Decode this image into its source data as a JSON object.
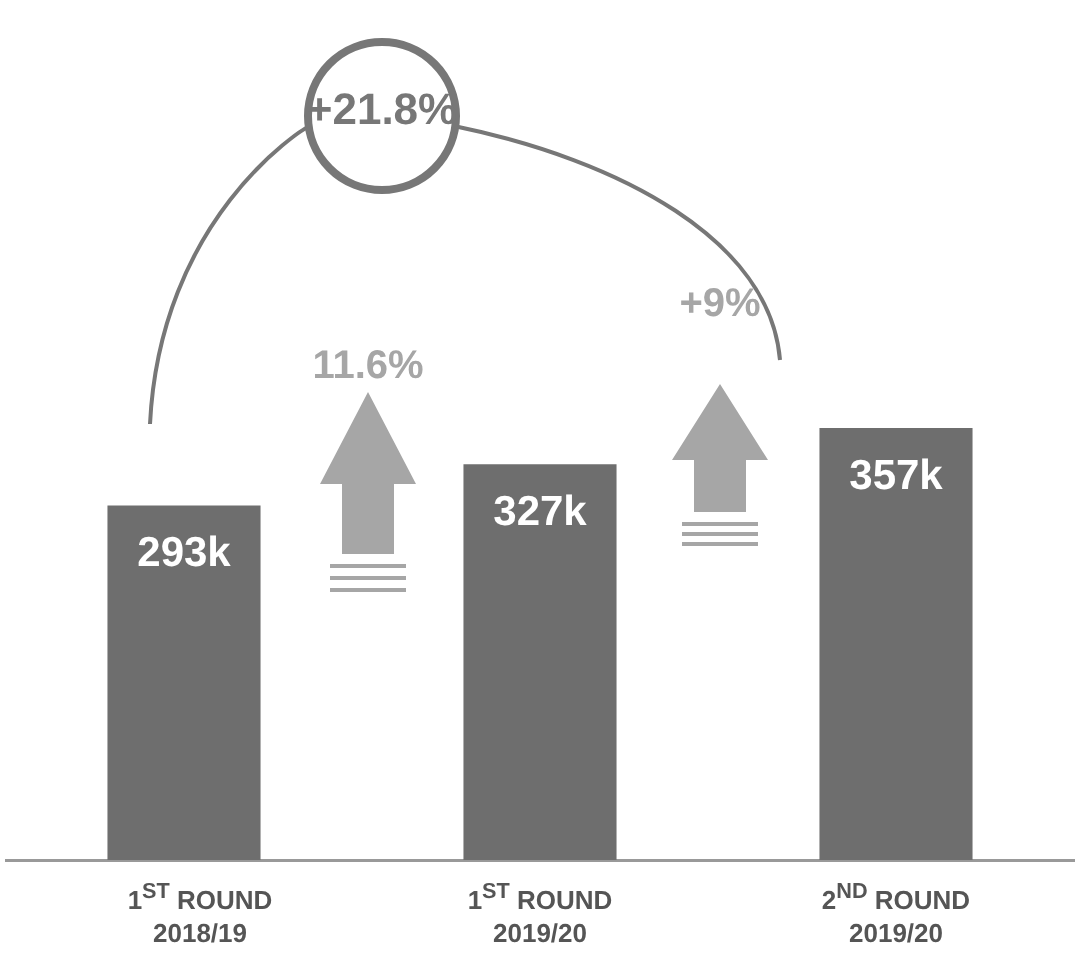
{
  "chart_data": {
    "type": "bar",
    "categories": [
      "1$^{ST}$ ROUND\n2018/19",
      "1$^{ST}$ ROUND\n2019/20",
      "2$^{ND}$ ROUND\n2019/20"
    ],
    "values": [
      293,
      327,
      357
    ],
    "value_labels": [
      "293k",
      "327k",
      "357k"
    ],
    "color": "#6e6e6e",
    "tick_labels": "x",
    "grid": false,
    "annotations": [
      "+21.8%",
      "11.6%",
      "+9%"
    ]
  }
}
